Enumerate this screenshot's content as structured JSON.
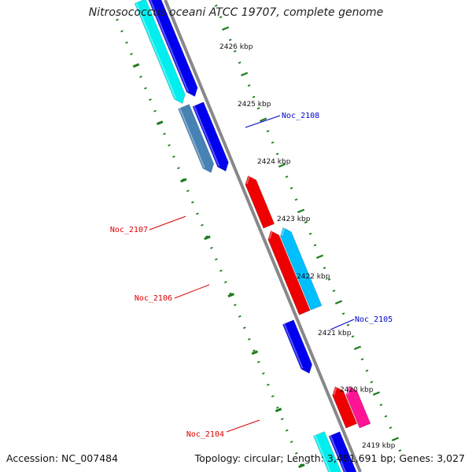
{
  "title": "Nitrosococcus oceani ATCC 19707, complete genome",
  "accession": "Accession: NC_007484",
  "summary": "Topology: circular; Length: 3,481,691 bp; Genes: 3,027",
  "colors": {
    "backbone": "#888888",
    "tick": "#1e7d1e",
    "forward_label": "#0000cc",
    "reverse_label": "#dd0000",
    "dark_blue": "#0000ee",
    "cyan": "#00eeee",
    "steel_blue": "#4682b4",
    "light_blue": "#00bfff",
    "red": "#ee0000",
    "pink": "#ff1493"
  },
  "kbp_labels": [
    "2426 kbp",
    "2425 kbp",
    "2424 kbp",
    "2423 kbp",
    "2422 kbp",
    "2421 kbp",
    "2420 kbp",
    "2419 kbp"
  ],
  "gene_labels": [
    {
      "text": "Noc_2108",
      "strand": "forward"
    },
    {
      "text": "Noc_2107",
      "strand": "reverse"
    },
    {
      "text": "Noc_2106",
      "strand": "reverse"
    },
    {
      "text": "Noc_2105",
      "strand": "forward"
    },
    {
      "text": "Noc_2104",
      "strand": "reverse"
    }
  ]
}
